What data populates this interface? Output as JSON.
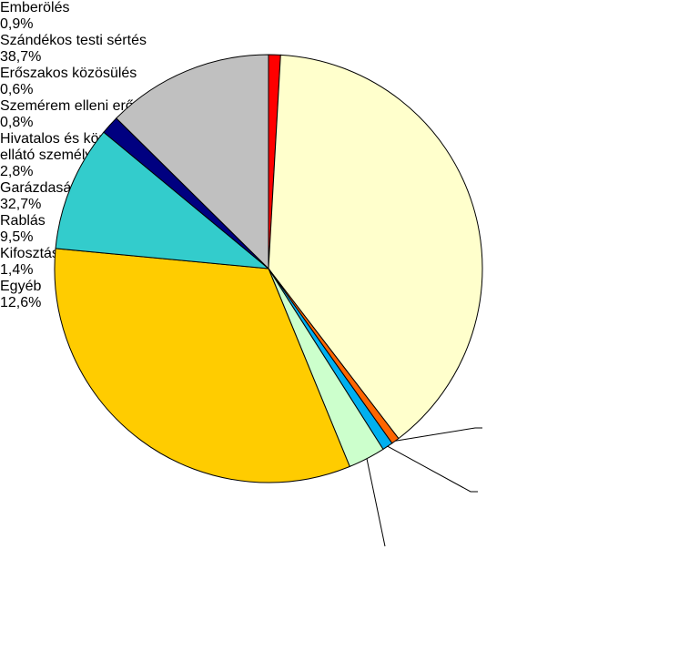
{
  "chart_data": {
    "type": "pie",
    "categories": [
      "Emberölés",
      "Szándékos testi sértés",
      "Erőszakos közösülés",
      "Szemérem elleni erőszak",
      "Hivatalos és közfeladatot ellátó személy elleni erőszak",
      "Garázdaság",
      "Rablás",
      "Kifosztás",
      "Egyéb"
    ],
    "values": [
      0.9,
      38.7,
      0.6,
      0.8,
      2.8,
      32.7,
      9.5,
      1.4,
      12.6
    ],
    "value_labels": [
      "0,9%",
      "38,7%",
      "0,6%",
      "0,8%",
      "2,8%",
      "32,7%",
      "9,5%",
      "1,4%",
      "12,6%"
    ],
    "colors": [
      "#ff0000",
      "#ffffcc",
      "#ff6600",
      "#00b0f0",
      "#ccffcc",
      "#ffcc00",
      "#33cccc",
      "#000080",
      "#c0c0c0"
    ]
  }
}
